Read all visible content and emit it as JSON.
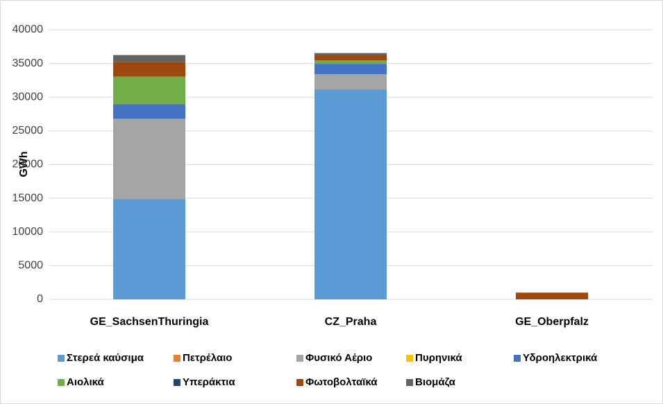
{
  "chart_data": {
    "type": "stacked_bar",
    "y_label": "GWh",
    "categories": [
      "GE_SachsenThuringia",
      "CZ_Praha",
      "GE_Oberpfalz"
    ],
    "series": [
      {
        "name": "Στερεά καύσιμα",
        "color": "#5b9bd5",
        "values": [
          14900,
          31150,
          0
        ]
      },
      {
        "name": "Πετρέλαιο",
        "color": "#ed7d31",
        "values": [
          0,
          0,
          0
        ]
      },
      {
        "name": "Φυσικό Αέριο",
        "color": "#a5a5a5",
        "values": [
          11900,
          2250,
          0
        ]
      },
      {
        "name": "Πυρηνικά",
        "color": "#ffc000",
        "values": [
          0,
          0,
          0
        ]
      },
      {
        "name": "Υδροηλεκτρικά",
        "color": "#4472c4",
        "values": [
          2150,
          1550,
          0
        ]
      },
      {
        "name": "Αιολικά",
        "color": "#70ad47",
        "values": [
          4100,
          500,
          0
        ]
      },
      {
        "name": "Υπεράκτια",
        "color": "#264478",
        "values": [
          0,
          0,
          0
        ]
      },
      {
        "name": "Φωτοβολταϊκά",
        "color": "#9e480e",
        "values": [
          2150,
          800,
          1000
        ]
      },
      {
        "name": "Βιομάζα",
        "color": "#636363",
        "values": [
          1050,
          300,
          0
        ]
      }
    ],
    "ylim": [
      0,
      40000
    ],
    "yticks": [
      0,
      5000,
      10000,
      15000,
      20000,
      25000,
      30000,
      35000,
      40000
    ],
    "grid": true
  }
}
